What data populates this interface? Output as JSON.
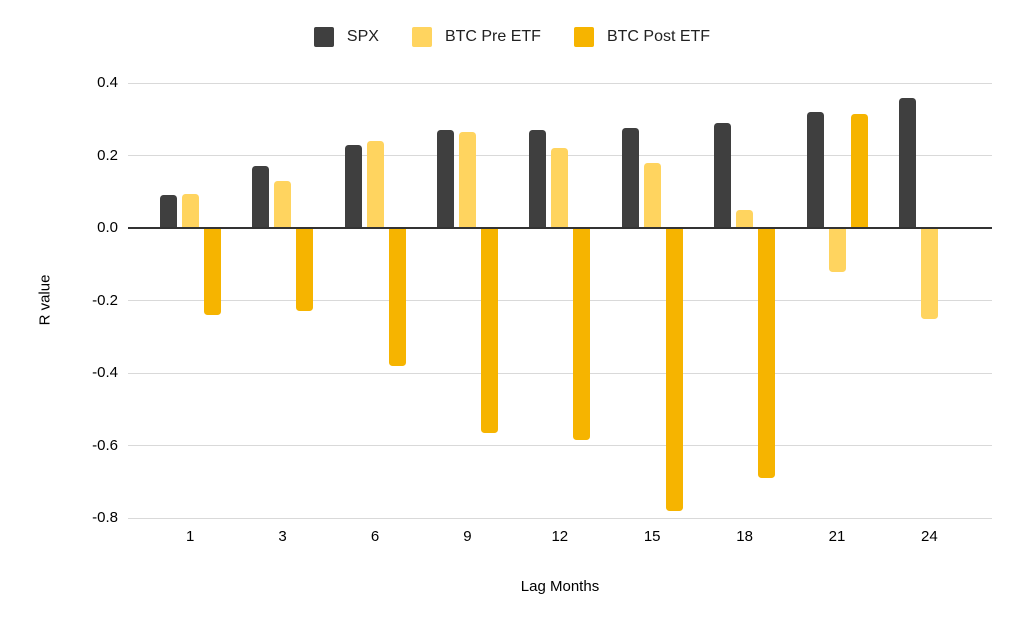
{
  "chart_data": {
    "type": "bar",
    "title": "",
    "xlabel": "Lag Months",
    "ylabel": "R value",
    "categories": [
      "1",
      "3",
      "6",
      "9",
      "12",
      "15",
      "18",
      "21",
      "24"
    ],
    "series": [
      {
        "name": "SPX",
        "color": "#3F3F3F",
        "values": [
          0.09,
          0.17,
          0.23,
          0.27,
          0.27,
          0.275,
          0.29,
          0.32,
          0.36
        ]
      },
      {
        "name": "BTC Pre ETF",
        "color": "#FFD45F",
        "values": [
          0.095,
          0.13,
          0.24,
          0.265,
          0.22,
          0.18,
          0.05,
          -0.12,
          -0.25
        ]
      },
      {
        "name": "BTC Post ETF",
        "color": "#F6B400",
        "values": [
          -0.24,
          -0.23,
          -0.38,
          -0.565,
          -0.585,
          -0.78,
          -0.69,
          0.315,
          null
        ]
      }
    ],
    "ylim": [
      -0.8,
      0.4
    ],
    "yticks": [
      0.4,
      0.2,
      0.0,
      -0.2,
      -0.4,
      -0.6,
      -0.8
    ],
    "ytick_labels": [
      "0.4",
      "0.2",
      "0.0",
      "-0.2",
      "-0.4",
      "-0.6",
      "-0.8"
    ],
    "grid": true,
    "legend_position": "top",
    "axis_colors": {
      "gridline": "#d9d9d9",
      "zero_line": "#333333",
      "tick_text": "#000000"
    }
  }
}
